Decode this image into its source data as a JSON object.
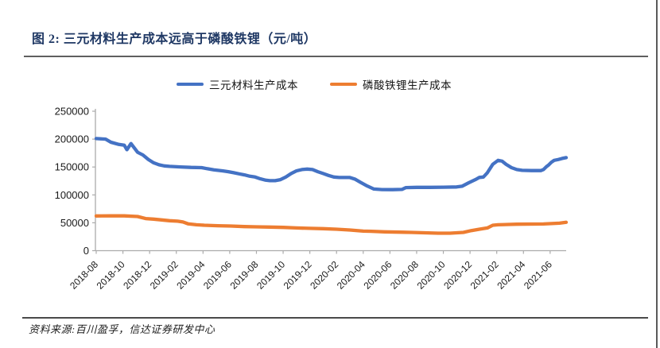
{
  "figure": {
    "title": "图 2: 三元材料生产成本远高于磷酸铁锂（元/吨）",
    "source_note": "资料来源:百川盈孚，信达证券研发中心"
  },
  "colors": {
    "title": "#1F3864",
    "ternary_line": "#4472C4",
    "lfp_line": "#ED7D31",
    "axis": "#ABABAB",
    "tick_label": "#1A1A1A"
  },
  "chart_data": {
    "type": "line",
    "title": "三元材料生产成本远高于磷酸铁锂",
    "unit": "元/吨",
    "legend": {
      "position": "top",
      "entries": [
        {
          "label": "三元材料生产成本",
          "color": "#4472C4"
        },
        {
          "label": "磷酸铁锂生产成本",
          "color": "#ED7D31"
        }
      ]
    },
    "x_axis": {
      "start_month": "2018-08",
      "months_per_unit": 1,
      "label_rotation_deg": -45,
      "tick_labels": [
        "2018-08",
        "2018-10",
        "2018-12",
        "2019-02",
        "2019-04",
        "2019-06",
        "2019-08",
        "2019-10",
        "2019-12",
        "2020-02",
        "2020-04",
        "2020-06",
        "2020-08",
        "2020-10",
        "2020-12",
        "2021-02",
        "2021-04",
        "2021-06"
      ]
    },
    "y_axis": {
      "min": 0,
      "max": 250000,
      "step": 50000,
      "tick_labels": [
        "0",
        "50000",
        "100000",
        "150000",
        "200000",
        "250000"
      ]
    },
    "series": [
      {
        "name": "三元材料生产成本",
        "color": "#4472C4",
        "points": [
          [
            0,
            201000
          ],
          [
            0.7,
            200000
          ],
          [
            1.1,
            194500
          ],
          [
            1.7,
            190500
          ],
          [
            2.1,
            189000
          ],
          [
            2.3,
            181000
          ],
          [
            2.6,
            192000
          ],
          [
            3.1,
            176500
          ],
          [
            3.5,
            171500
          ],
          [
            3.9,
            163500
          ],
          [
            4.3,
            157500
          ],
          [
            4.7,
            154000
          ],
          [
            5.1,
            152000
          ],
          [
            5.5,
            151200
          ],
          [
            6.3,
            150200
          ],
          [
            7.1,
            149300
          ],
          [
            7.9,
            148800
          ],
          [
            8.3,
            147000
          ],
          [
            8.8,
            145000
          ],
          [
            9.5,
            143000
          ],
          [
            9.9,
            141600
          ],
          [
            10.3,
            139700
          ],
          [
            10.7,
            137800
          ],
          [
            11.1,
            135900
          ],
          [
            11.5,
            133500
          ],
          [
            11.9,
            132100
          ],
          [
            12.3,
            128800
          ],
          [
            12.7,
            126400
          ],
          [
            13,
            125500
          ],
          [
            13.4,
            125500
          ],
          [
            13.8,
            127400
          ],
          [
            14.2,
            132100
          ],
          [
            14.6,
            138300
          ],
          [
            15,
            143000
          ],
          [
            15.4,
            145400
          ],
          [
            15.8,
            146300
          ],
          [
            16.2,
            145400
          ],
          [
            16.6,
            141600
          ],
          [
            17,
            138300
          ],
          [
            17.4,
            134900
          ],
          [
            17.8,
            132100
          ],
          [
            18.2,
            131200
          ],
          [
            19,
            131200
          ],
          [
            19.4,
            128000
          ],
          [
            19.8,
            122500
          ],
          [
            20.3,
            116000
          ],
          [
            20.8,
            110500
          ],
          [
            21.4,
            109500
          ],
          [
            22.2,
            109400
          ],
          [
            22.9,
            109800
          ],
          [
            23.2,
            113100
          ],
          [
            24,
            113600
          ],
          [
            25,
            113600
          ],
          [
            26,
            113800
          ],
          [
            27,
            114300
          ],
          [
            27.4,
            115500
          ],
          [
            27.9,
            121600
          ],
          [
            28.4,
            127400
          ],
          [
            28.7,
            131300
          ],
          [
            29,
            132100
          ],
          [
            29.3,
            139700
          ],
          [
            29.7,
            154900
          ],
          [
            30.1,
            162000
          ],
          [
            30.4,
            160600
          ],
          [
            30.7,
            154900
          ],
          [
            31.1,
            148800
          ],
          [
            31.5,
            145400
          ],
          [
            31.9,
            144000
          ],
          [
            32.6,
            143600
          ],
          [
            33.3,
            143600
          ],
          [
            33.5,
            145400
          ],
          [
            33.7,
            150200
          ],
          [
            33.9,
            154000
          ],
          [
            34.1,
            158700
          ],
          [
            34.3,
            162000
          ],
          [
            34.6,
            163400
          ],
          [
            34.9,
            165400
          ],
          [
            35.2,
            166800
          ]
        ]
      },
      {
        "name": "磷酸铁锂生产成本",
        "color": "#ED7D31",
        "points": [
          [
            0,
            62300
          ],
          [
            1.1,
            62400
          ],
          [
            2.1,
            62400
          ],
          [
            3.1,
            61300
          ],
          [
            3.7,
            57500
          ],
          [
            4.3,
            56500
          ],
          [
            4.9,
            55100
          ],
          [
            5.5,
            53700
          ],
          [
            6.1,
            52800
          ],
          [
            6.5,
            51400
          ],
          [
            6.9,
            48000
          ],
          [
            7.5,
            46500
          ],
          [
            8.1,
            45600
          ],
          [
            9.1,
            44700
          ],
          [
            10.1,
            44200
          ],
          [
            11.1,
            43200
          ],
          [
            12,
            42800
          ],
          [
            13,
            42300
          ],
          [
            14,
            41800
          ],
          [
            15,
            40800
          ],
          [
            16,
            40000
          ],
          [
            17,
            39400
          ],
          [
            18,
            38500
          ],
          [
            19,
            37100
          ],
          [
            20,
            35100
          ],
          [
            20.6,
            34700
          ],
          [
            21.6,
            33700
          ],
          [
            23.6,
            32800
          ],
          [
            25.6,
            31400
          ],
          [
            26.5,
            31400
          ],
          [
            27.5,
            32800
          ],
          [
            28.1,
            36100
          ],
          [
            28.7,
            38500
          ],
          [
            29.3,
            40800
          ],
          [
            29.7,
            45600
          ],
          [
            30.1,
            46500
          ],
          [
            31.5,
            47500
          ],
          [
            33.5,
            47900
          ],
          [
            34.7,
            49300
          ],
          [
            35.2,
            50800
          ]
        ]
      }
    ]
  }
}
